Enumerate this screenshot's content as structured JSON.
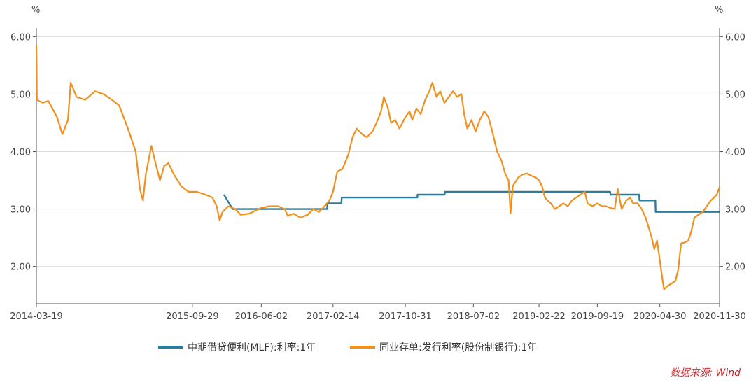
{
  "chart_data": {
    "type": "line",
    "y_unit_left": "%",
    "y_unit_right": "%",
    "ylim": [
      1.35,
      6.15
    ],
    "y_ticks": [
      2.0,
      3.0,
      4.0,
      5.0,
      6.0
    ],
    "y_tick_labels": [
      "2.00",
      "3.00",
      "4.00",
      "5.00",
      "6.00"
    ],
    "x_range": [
      "2014-03-19",
      "2020-11-30"
    ],
    "x_ticks": [
      "2014-03-19",
      "2015-09-29",
      "2016-06-02",
      "2017-02-14",
      "2017-10-31",
      "2018-07-02",
      "2019-02-22",
      "2019-09-19",
      "2020-04-30",
      "2020-11-30"
    ],
    "grid": "horizontal",
    "legend_position": "bottom",
    "series": [
      {
        "name": "中期借贷便利(MLF):利率:1年",
        "color": "#2a7d9c",
        "points": [
          [
            "2016-01-20",
            3.25
          ],
          [
            "2016-02-20",
            3.0
          ],
          [
            "2017-01-24",
            3.0
          ],
          [
            "2017-01-25",
            3.1
          ],
          [
            "2017-03-16",
            3.1
          ],
          [
            "2017-03-17",
            3.2
          ],
          [
            "2017-12-13",
            3.2
          ],
          [
            "2017-12-14",
            3.25
          ],
          [
            "2018-03-21",
            3.25
          ],
          [
            "2018-03-22",
            3.3
          ],
          [
            "2019-11-04",
            3.3
          ],
          [
            "2019-11-05",
            3.25
          ],
          [
            "2020-02-16",
            3.25
          ],
          [
            "2020-02-17",
            3.15
          ],
          [
            "2020-04-14",
            3.15
          ],
          [
            "2020-04-15",
            2.95
          ],
          [
            "2020-11-30",
            2.95
          ]
        ]
      },
      {
        "name": "同业存单:发行利率(股份制银行):1年",
        "color": "#f0901e",
        "points": [
          [
            "2014-03-19",
            5.85
          ],
          [
            "2014-03-21",
            4.9
          ],
          [
            "2014-04-10",
            4.85
          ],
          [
            "2014-05-01",
            4.88
          ],
          [
            "2014-06-01",
            4.6
          ],
          [
            "2014-06-20",
            4.3
          ],
          [
            "2014-07-10",
            4.55
          ],
          [
            "2014-07-20",
            5.2
          ],
          [
            "2014-08-10",
            4.95
          ],
          [
            "2014-09-10",
            4.9
          ],
          [
            "2014-10-15",
            5.05
          ],
          [
            "2014-11-15",
            5.0
          ],
          [
            "2014-12-15",
            4.9
          ],
          [
            "2015-01-10",
            4.8
          ],
          [
            "2015-02-10",
            4.4
          ],
          [
            "2015-03-10",
            4.0
          ],
          [
            "2015-03-25",
            3.35
          ],
          [
            "2015-04-05",
            3.15
          ],
          [
            "2015-04-15",
            3.6
          ],
          [
            "2015-05-05",
            4.1
          ],
          [
            "2015-05-20",
            3.8
          ],
          [
            "2015-06-05",
            3.5
          ],
          [
            "2015-06-20",
            3.75
          ],
          [
            "2015-07-05",
            3.8
          ],
          [
            "2015-07-25",
            3.6
          ],
          [
            "2015-08-20",
            3.4
          ],
          [
            "2015-09-15",
            3.3
          ],
          [
            "2015-10-15",
            3.3
          ],
          [
            "2015-11-15",
            3.25
          ],
          [
            "2015-12-10",
            3.2
          ],
          [
            "2015-12-25",
            3.05
          ],
          [
            "2016-01-05",
            2.8
          ],
          [
            "2016-01-15",
            2.95
          ],
          [
            "2016-02-05",
            3.05
          ],
          [
            "2016-03-01",
            3.0
          ],
          [
            "2016-03-20",
            2.9
          ],
          [
            "2016-04-20",
            2.92
          ],
          [
            "2016-05-15",
            2.98
          ],
          [
            "2016-06-02",
            3.02
          ],
          [
            "2016-07-01",
            3.05
          ],
          [
            "2016-08-01",
            3.05
          ],
          [
            "2016-08-25",
            3.0
          ],
          [
            "2016-09-05",
            2.88
          ],
          [
            "2016-09-25",
            2.92
          ],
          [
            "2016-10-20",
            2.85
          ],
          [
            "2016-11-15",
            2.9
          ],
          [
            "2016-12-05",
            3.0
          ],
          [
            "2016-12-25",
            2.95
          ],
          [
            "2017-01-15",
            3.05
          ],
          [
            "2017-02-01",
            3.15
          ],
          [
            "2017-02-14",
            3.3
          ],
          [
            "2017-03-01",
            3.65
          ],
          [
            "2017-03-20",
            3.7
          ],
          [
            "2017-04-10",
            3.95
          ],
          [
            "2017-04-25",
            4.25
          ],
          [
            "2017-05-10",
            4.4
          ],
          [
            "2017-05-30",
            4.3
          ],
          [
            "2017-06-15",
            4.25
          ],
          [
            "2017-07-05",
            4.35
          ],
          [
            "2017-07-20",
            4.5
          ],
          [
            "2017-08-05",
            4.7
          ],
          [
            "2017-08-15",
            4.95
          ],
          [
            "2017-08-30",
            4.75
          ],
          [
            "2017-09-10",
            4.5
          ],
          [
            "2017-09-25",
            4.55
          ],
          [
            "2017-10-10",
            4.4
          ],
          [
            "2017-10-31",
            4.6
          ],
          [
            "2017-11-15",
            4.7
          ],
          [
            "2017-11-25",
            4.55
          ],
          [
            "2017-12-10",
            4.75
          ],
          [
            "2017-12-25",
            4.65
          ],
          [
            "2018-01-10",
            4.9
          ],
          [
            "2018-01-25",
            5.05
          ],
          [
            "2018-02-05",
            5.2
          ],
          [
            "2018-02-20",
            4.95
          ],
          [
            "2018-03-05",
            5.05
          ],
          [
            "2018-03-20",
            4.85
          ],
          [
            "2018-04-05",
            4.95
          ],
          [
            "2018-04-20",
            5.05
          ],
          [
            "2018-05-05",
            4.95
          ],
          [
            "2018-05-20",
            5.0
          ],
          [
            "2018-05-30",
            4.65
          ],
          [
            "2018-06-10",
            4.4
          ],
          [
            "2018-06-25",
            4.55
          ],
          [
            "2018-07-10",
            4.35
          ],
          [
            "2018-07-25",
            4.55
          ],
          [
            "2018-08-10",
            4.7
          ],
          [
            "2018-08-25",
            4.6
          ],
          [
            "2018-09-10",
            4.3
          ],
          [
            "2018-09-25",
            4.0
          ],
          [
            "2018-10-10",
            3.85
          ],
          [
            "2018-10-25",
            3.6
          ],
          [
            "2018-11-05",
            3.5
          ],
          [
            "2018-11-12",
            2.92
          ],
          [
            "2018-11-20",
            3.4
          ],
          [
            "2018-12-10",
            3.55
          ],
          [
            "2018-12-25",
            3.6
          ],
          [
            "2019-01-10",
            3.62
          ],
          [
            "2019-01-25",
            3.58
          ],
          [
            "2019-02-10",
            3.55
          ],
          [
            "2019-02-22",
            3.5
          ],
          [
            "2019-03-05",
            3.4
          ],
          [
            "2019-03-15",
            3.2
          ],
          [
            "2019-03-25",
            3.15
          ],
          [
            "2019-04-05",
            3.1
          ],
          [
            "2019-04-20",
            3.0
          ],
          [
            "2019-05-05",
            3.05
          ],
          [
            "2019-05-20",
            3.1
          ],
          [
            "2019-06-05",
            3.05
          ],
          [
            "2019-06-20",
            3.15
          ],
          [
            "2019-07-05",
            3.2
          ],
          [
            "2019-07-20",
            3.25
          ],
          [
            "2019-08-05",
            3.3
          ],
          [
            "2019-08-15",
            3.1
          ],
          [
            "2019-09-01",
            3.05
          ],
          [
            "2019-09-19",
            3.1
          ],
          [
            "2019-10-05",
            3.05
          ],
          [
            "2019-10-20",
            3.05
          ],
          [
            "2019-11-05",
            3.02
          ],
          [
            "2019-11-20",
            3.0
          ],
          [
            "2019-12-01",
            3.35
          ],
          [
            "2019-12-15",
            3.0
          ],
          [
            "2020-01-01",
            3.15
          ],
          [
            "2020-01-15",
            3.2
          ],
          [
            "2020-01-25",
            3.1
          ],
          [
            "2020-02-10",
            3.1
          ],
          [
            "2020-02-25",
            3.0
          ],
          [
            "2020-03-10",
            2.85
          ],
          [
            "2020-03-20",
            2.7
          ],
          [
            "2020-04-01",
            2.5
          ],
          [
            "2020-04-10",
            2.3
          ],
          [
            "2020-04-20",
            2.45
          ],
          [
            "2020-04-30",
            2.1
          ],
          [
            "2020-05-10",
            1.75
          ],
          [
            "2020-05-15",
            1.6
          ],
          [
            "2020-05-25",
            1.65
          ],
          [
            "2020-06-10",
            1.7
          ],
          [
            "2020-06-25",
            1.75
          ],
          [
            "2020-07-05",
            1.95
          ],
          [
            "2020-07-15",
            2.4
          ],
          [
            "2020-07-30",
            2.42
          ],
          [
            "2020-08-10",
            2.45
          ],
          [
            "2020-08-20",
            2.6
          ],
          [
            "2020-09-01",
            2.85
          ],
          [
            "2020-09-15",
            2.9
          ],
          [
            "2020-10-01",
            2.95
          ],
          [
            "2020-10-15",
            3.05
          ],
          [
            "2020-10-30",
            3.15
          ],
          [
            "2020-11-10",
            3.2
          ],
          [
            "2020-11-20",
            3.25
          ],
          [
            "2020-11-30",
            3.38
          ]
        ]
      }
    ]
  },
  "source_label": "数据来源: Wind"
}
